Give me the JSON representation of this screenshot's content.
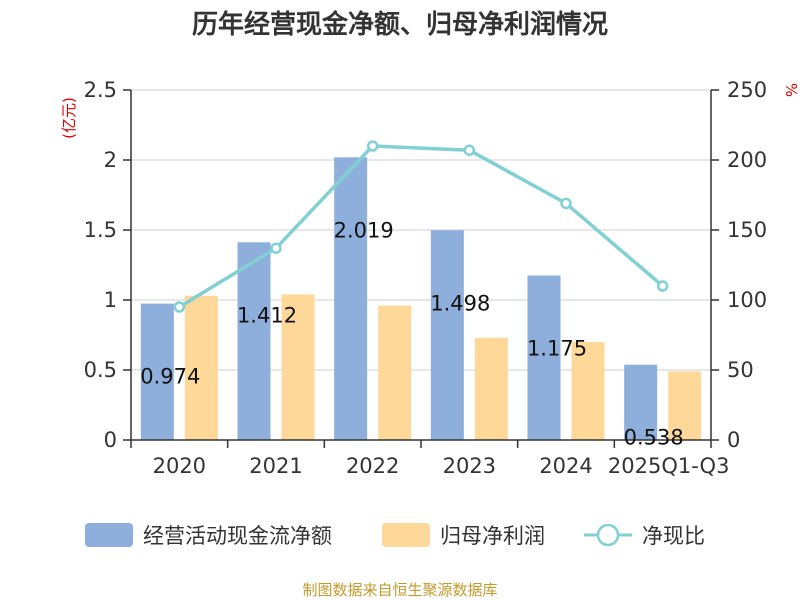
{
  "chart_data": {
    "type": "bar",
    "title": "历年经营现金净额、归母净利润情况",
    "categories": [
      "2020",
      "2021",
      "2022",
      "2023",
      "2024",
      "2025Q1-Q3"
    ],
    "left_unit": "(亿元)",
    "right_unit": "%",
    "y_left": {
      "min": 0,
      "max": 2.5,
      "ticks": [
        "0",
        "0.5",
        "1",
        "1.5",
        "2",
        "2.5"
      ]
    },
    "y_right": {
      "min": 0,
      "max": 250,
      "ticks": [
        "0",
        "50",
        "100",
        "150",
        "200",
        "250"
      ]
    },
    "grid": true,
    "legend_position": "bottom",
    "series": [
      {
        "name": "经营活动现金流净额",
        "type": "bar",
        "axis": "left",
        "color": "#8eaedc",
        "values": [
          0.974,
          1.412,
          2.019,
          1.498,
          1.175,
          0.538
        ],
        "labels": [
          "0.974",
          "1.412",
          "2.019",
          "1.498",
          "1.175",
          "0.538"
        ]
      },
      {
        "name": "归母净利润",
        "type": "bar",
        "axis": "left",
        "color": "#fdd898",
        "values": [
          1.03,
          1.04,
          0.96,
          0.73,
          0.7,
          0.49
        ]
      },
      {
        "name": "净现比",
        "type": "line",
        "axis": "right",
        "color": "#80d0d4",
        "values": [
          95,
          137,
          210,
          207,
          169,
          110
        ]
      }
    ]
  },
  "source": "制图数据来自恒生聚源数据库"
}
